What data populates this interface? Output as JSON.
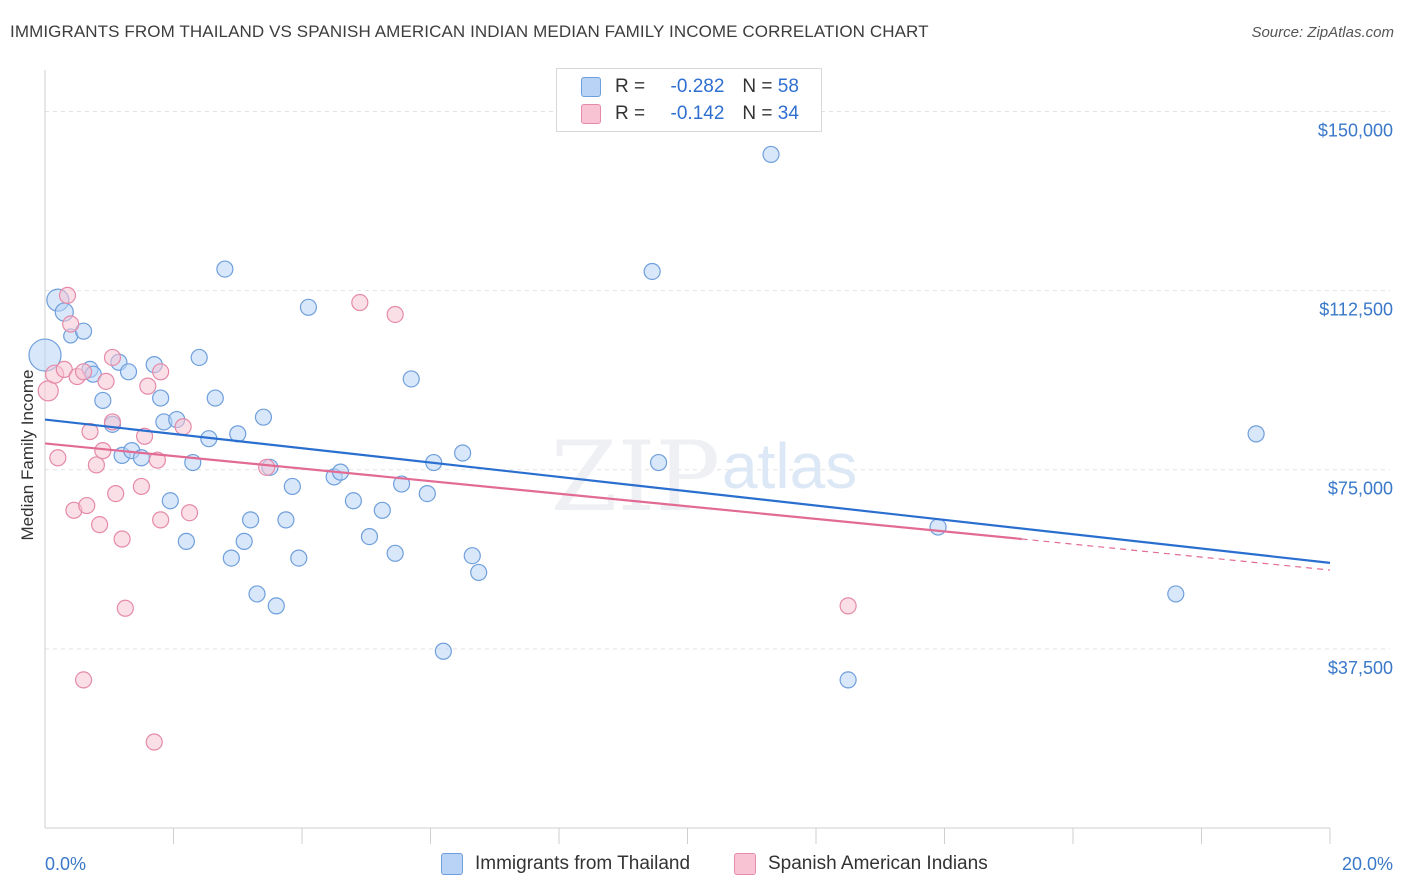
{
  "title": "IMMIGRANTS FROM THAILAND VS SPANISH AMERICAN INDIAN MEDIAN FAMILY INCOME CORRELATION CHART",
  "source": "Source: ZipAtlas.com",
  "legend": {
    "r_label": "R =",
    "n_label": "N =",
    "rows": [
      {
        "r": "-0.282",
        "n": "58"
      },
      {
        "r": "-0.142",
        "n": "34"
      }
    ]
  },
  "colors": {
    "blue_fill": "#b8d3f5",
    "blue_stroke": "#6f9fdc",
    "blue_line": "#2a6fd0",
    "pink_fill": "#f8c4d4",
    "pink_stroke": "#e58aa8",
    "pink_line": "#e26b94"
  },
  "chart_data": {
    "type": "scatter",
    "title": "IMMIGRANTS FROM THAILAND VS SPANISH AMERICAN INDIAN MEDIAN FAMILY INCOME CORRELATION CHART",
    "xlabel": "",
    "ylabel": "Median Family Income",
    "xlim": [
      0,
      20
    ],
    "ylim": [
      0,
      157000
    ],
    "x_tick_labels": [
      "0.0%",
      "20.0%"
    ],
    "y_ticks": [
      37500,
      75000,
      112500,
      150000
    ],
    "y_tick_labels": [
      "$37,500",
      "$75,000",
      "$112,500",
      "$150,000"
    ],
    "watermark": "ZIPatlas",
    "series": [
      {
        "name": "Immigrants from Thailand",
        "color": "blue",
        "r": -0.282,
        "n": 58,
        "trend": {
          "x0": 0,
          "y0": 85500,
          "x1": 20,
          "y1": 55500
        },
        "points": [
          [
            0.0,
            99000,
            16
          ],
          [
            0.2,
            110500,
            11
          ],
          [
            0.3,
            108000,
            9
          ],
          [
            0.4,
            103000,
            7
          ],
          [
            0.6,
            104000,
            8
          ],
          [
            0.7,
            96000,
            8
          ],
          [
            0.75,
            95000,
            8
          ],
          [
            0.9,
            89500,
            8
          ],
          [
            1.05,
            84500,
            8
          ],
          [
            1.15,
            97500,
            8
          ],
          [
            1.3,
            95500,
            8
          ],
          [
            1.2,
            78000,
            8
          ],
          [
            1.35,
            79000,
            8
          ],
          [
            1.5,
            77500,
            8
          ],
          [
            1.7,
            97000,
            8
          ],
          [
            1.8,
            90000,
            8
          ],
          [
            1.85,
            85000,
            8
          ],
          [
            1.95,
            68500,
            8
          ],
          [
            2.05,
            85500,
            8
          ],
          [
            2.2,
            60000,
            8
          ],
          [
            2.3,
            76500,
            8
          ],
          [
            2.4,
            98500,
            8
          ],
          [
            2.55,
            81500,
            8
          ],
          [
            2.65,
            90000,
            8
          ],
          [
            2.8,
            117000,
            8
          ],
          [
            2.9,
            56500,
            8
          ],
          [
            3.0,
            82500,
            8
          ],
          [
            3.1,
            60000,
            8
          ],
          [
            3.2,
            64500,
            8
          ],
          [
            3.3,
            49000,
            8
          ],
          [
            3.4,
            86000,
            8
          ],
          [
            3.5,
            75500,
            8
          ],
          [
            3.6,
            46500,
            8
          ],
          [
            3.75,
            64500,
            8
          ],
          [
            3.85,
            71500,
            8
          ],
          [
            3.95,
            56500,
            8
          ],
          [
            4.1,
            109000,
            8
          ],
          [
            4.5,
            73500,
            8
          ],
          [
            4.6,
            74500,
            8
          ],
          [
            4.8,
            68500,
            8
          ],
          [
            5.05,
            61000,
            8
          ],
          [
            5.25,
            66500,
            8
          ],
          [
            5.45,
            57500,
            8
          ],
          [
            5.55,
            72000,
            8
          ],
          [
            5.7,
            94000,
            8
          ],
          [
            5.95,
            70000,
            8
          ],
          [
            6.05,
            76500,
            8
          ],
          [
            6.2,
            37000,
            8
          ],
          [
            6.5,
            78500,
            8
          ],
          [
            6.65,
            57000,
            8
          ],
          [
            6.75,
            53500,
            8
          ],
          [
            9.45,
            116500,
            8
          ],
          [
            9.55,
            76500,
            8
          ],
          [
            11.3,
            141000,
            8
          ],
          [
            12.5,
            31000,
            8
          ],
          [
            13.9,
            63000,
            8
          ],
          [
            17.6,
            49000,
            8
          ],
          [
            18.85,
            82500,
            8
          ]
        ]
      },
      {
        "name": "Spanish American Indians",
        "color": "pink",
        "r": -0.142,
        "n": 34,
        "trend": {
          "x0": 0,
          "y0": 80500,
          "x1": 15.2,
          "y1": 60500
        },
        "trend_dashed": {
          "x0": 15.2,
          "y0": 60500,
          "x1": 20,
          "y1": 54000
        },
        "points": [
          [
            0.05,
            91500,
            10
          ],
          [
            0.15,
            95000,
            9
          ],
          [
            0.2,
            77500,
            8
          ],
          [
            0.3,
            96000,
            8
          ],
          [
            0.35,
            111500,
            8
          ],
          [
            0.4,
            105500,
            8
          ],
          [
            0.45,
            66500,
            8
          ],
          [
            0.5,
            94500,
            8
          ],
          [
            0.6,
            95500,
            8
          ],
          [
            0.6,
            31000,
            8
          ],
          [
            0.65,
            67500,
            8
          ],
          [
            0.7,
            83000,
            8
          ],
          [
            0.8,
            76000,
            8
          ],
          [
            0.85,
            63500,
            8
          ],
          [
            0.9,
            79000,
            8
          ],
          [
            0.95,
            93500,
            8
          ],
          [
            1.05,
            85000,
            8
          ],
          [
            1.05,
            98500,
            8
          ],
          [
            1.1,
            70000,
            8
          ],
          [
            1.2,
            60500,
            8
          ],
          [
            1.25,
            46000,
            8
          ],
          [
            1.5,
            71500,
            8
          ],
          [
            1.55,
            82000,
            8
          ],
          [
            1.6,
            92500,
            8
          ],
          [
            1.7,
            18000,
            8
          ],
          [
            1.75,
            77000,
            8
          ],
          [
            1.8,
            64500,
            8
          ],
          [
            1.8,
            95500,
            8
          ],
          [
            2.15,
            84000,
            8
          ],
          [
            2.25,
            66000,
            8
          ],
          [
            3.45,
            75500,
            8
          ],
          [
            4.9,
            110000,
            8
          ],
          [
            5.45,
            107500,
            8
          ],
          [
            12.5,
            46500,
            8
          ]
        ]
      }
    ]
  }
}
